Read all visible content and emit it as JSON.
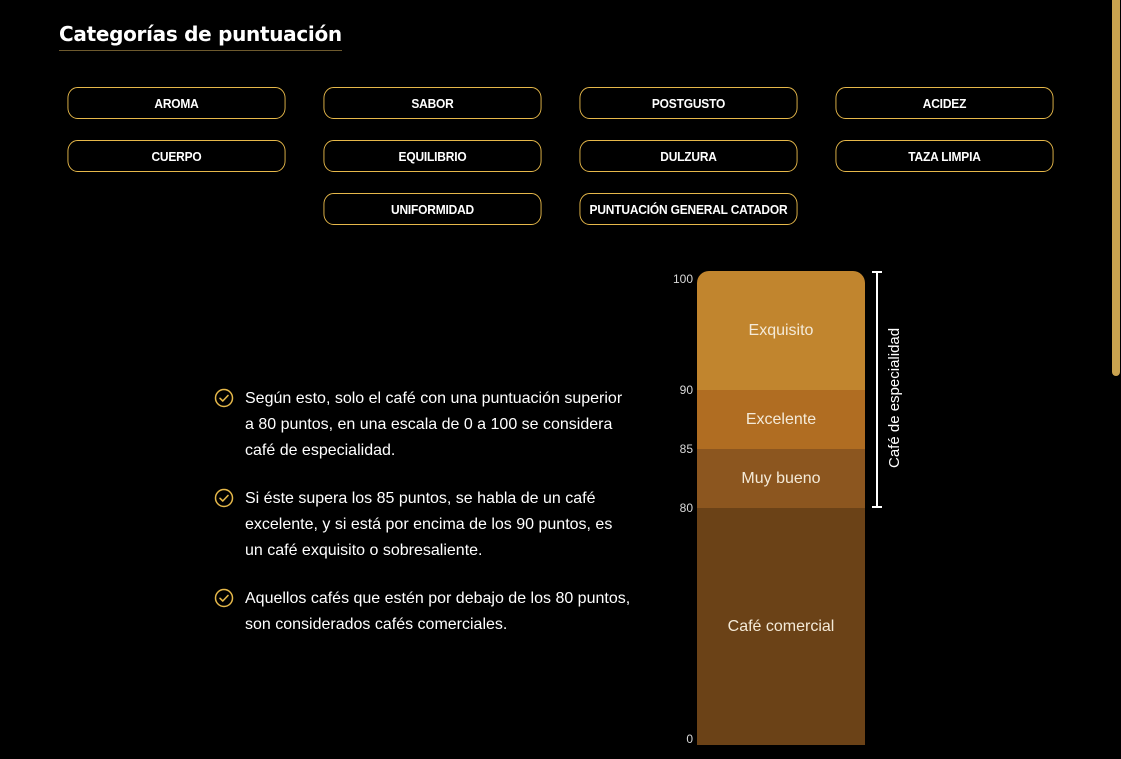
{
  "section": {
    "title": "Categorías de puntuación"
  },
  "categories": [
    "AROMA",
    "SABOR",
    "POSTGUSTO",
    "ACIDEZ",
    "CUERPO",
    "EQUILIBRIO",
    "DULZURA",
    "TAZA LIMPIA",
    "UNIFORMIDAD",
    "PUNTUACIÓN GENERAL CATADOR"
  ],
  "bullets": [
    "Según esto, solo el café con una puntuación superior a 80 puntos, en una escala de 0 a 100 se considera café de especialidad.",
    "Si éste supera los 85 puntos, se habla de un café excelente, y si está por encima de los 90 puntos, es un café exquisito o sobresaliente.",
    "Aquellos cafés que estén por debajo de los 80 puntos, son considerados cafés comerciales."
  ],
  "scale": {
    "ticks": [
      "100",
      "90",
      "85",
      "80",
      "0"
    ],
    "segments": [
      {
        "label": "Exquisito",
        "from": 90,
        "to": 100,
        "color": "#c1852e"
      },
      {
        "label": "Excelente",
        "from": 85,
        "to": 90,
        "color": "#b06d22"
      },
      {
        "label": "Muy bueno",
        "from": 80,
        "to": 85,
        "color": "#8c561f"
      },
      {
        "label": "Café comercial",
        "from": 0,
        "to": 80,
        "color": "#6b4217"
      }
    ],
    "bracket_label": "Café de especialidad"
  },
  "colors": {
    "accent": "#e6b84a",
    "background": "#000000"
  }
}
